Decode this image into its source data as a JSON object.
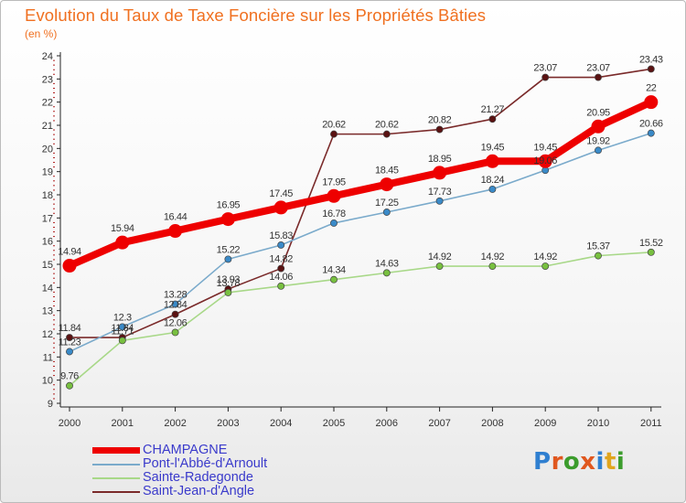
{
  "title": "Evolution du Taux de Taxe Foncière sur les Propriétés Bâties",
  "unit_label": "(en %)",
  "brand": {
    "letters": [
      "P",
      "r",
      "o",
      "x",
      "i",
      "t",
      "i"
    ],
    "colors": [
      "#2f7fd0",
      "#e0571e",
      "#3b9c2c",
      "#e0571e",
      "#2f7fd0",
      "#e0a51e",
      "#3b9c2c"
    ]
  },
  "chart_data": {
    "type": "line",
    "x": [
      "2000",
      "2001",
      "2002",
      "2003",
      "2004",
      "2005",
      "2006",
      "2007",
      "2008",
      "2009",
      "2010",
      "2011"
    ],
    "ylim": [
      9,
      24
    ],
    "yticks": [
      "9",
      "10",
      "11",
      "12",
      "13",
      "14",
      "15",
      "16",
      "17",
      "18",
      "19",
      "20",
      "21",
      "22",
      "23",
      "24"
    ],
    "grid": false,
    "legend_position": "bottom-left",
    "series": [
      {
        "name": "Saint-Jean-d'Angle",
        "color": "#7a2a2a",
        "marker": "#5a1212",
        "values": [
          11.84,
          11.84,
          12.84,
          13.93,
          14.82,
          20.62,
          20.62,
          20.82,
          21.27,
          23.07,
          23.07,
          23.43
        ],
        "labels": [
          "11.84",
          "11.84",
          "12.84",
          "13.93",
          "14.82",
          "20.62",
          "20.62",
          "20.82",
          "21.27",
          "23.07",
          "23.07",
          "23.43"
        ]
      },
      {
        "name": "Pont-l'Abbé-d'Arnoult",
        "color": "#7aaacb",
        "marker": "#3a8ac8",
        "values": [
          11.23,
          12.3,
          13.28,
          15.22,
          15.83,
          16.78,
          17.25,
          17.73,
          18.24,
          19.06,
          19.92,
          20.66
        ],
        "labels": [
          "11.23",
          "12.3",
          "13.28",
          "15.22",
          "15.83",
          "16.78",
          "17.25",
          "17.73",
          "18.24",
          "19.06",
          "19.92",
          "20.66"
        ]
      },
      {
        "name": "Sainte-Radegonde",
        "color": "#a8d888",
        "marker": "#78c040",
        "values": [
          9.76,
          11.71,
          12.06,
          13.78,
          14.06,
          14.34,
          14.63,
          14.92,
          14.92,
          14.92,
          15.37,
          15.52
        ],
        "labels": [
          "9.76",
          "11.71",
          "12.06",
          "13.78",
          "14.06",
          "14.34",
          "14.63",
          "14.92",
          "14.92",
          "14.92",
          "15.37",
          "15.52"
        ]
      },
      {
        "name": "CHAMPAGNE",
        "color": "#ee0000",
        "marker": "#ee0000",
        "values": [
          14.94,
          15.94,
          16.44,
          16.95,
          17.45,
          17.95,
          18.45,
          18.95,
          19.45,
          19.45,
          20.95,
          22
        ],
        "labels": [
          "14.94",
          "15.94",
          "16.44",
          "16.95",
          "17.45",
          "17.95",
          "18.45",
          "18.95",
          "19.45",
          "19.45",
          "20.95",
          "22"
        ]
      }
    ],
    "legend_order": [
      3,
      1,
      2,
      0
    ]
  }
}
